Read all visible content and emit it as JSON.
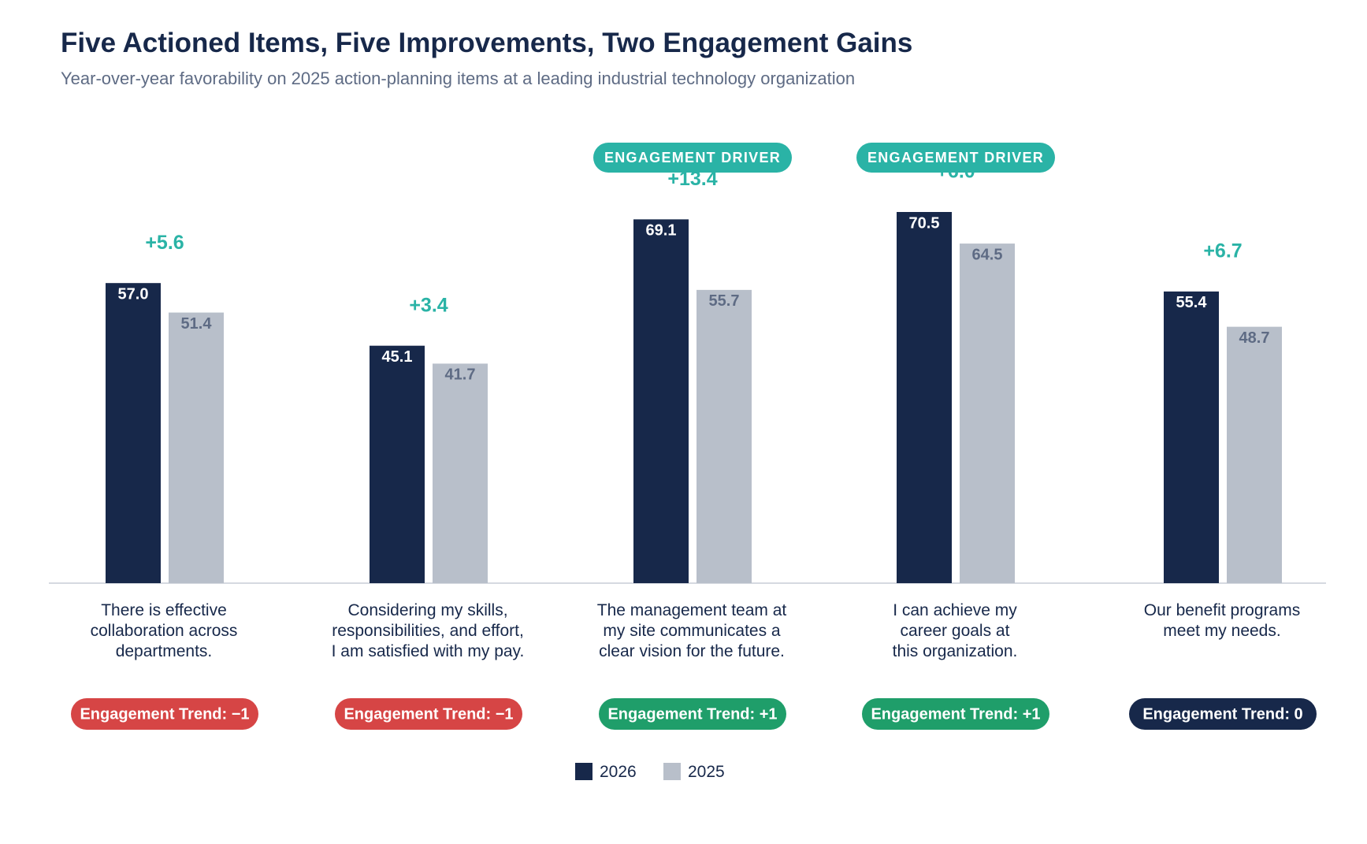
{
  "colors": {
    "primary": "#17284a",
    "secondary": "#b8bfca",
    "secondary_label": "#5e6b84",
    "accent_teal": "#2ab3a6",
    "trend_negative": "#d64545",
    "trend_positive": "#1f9e6a",
    "trend_neutral": "#17284a",
    "axis": "#d5d9e0"
  },
  "chart_data": {
    "type": "bar",
    "title": "Five Actioned Items, Five Improvements, Two Engagement Gains",
    "subtitle": "Year-over-year favorability on 2025 action-planning items at a leading industrial technology organization",
    "categories": [
      "There is effective collaboration across departments.",
      "Considering my skills, responsibilities, and effort, I am satisfied with my pay.",
      "The management team at my site communicates a clear vision for the future.",
      "I can achieve my career goals at this organization.",
      "Our benefit programs meet my needs."
    ],
    "category_lines": [
      [
        "There is effective",
        "collaboration across",
        "departments."
      ],
      [
        "Considering my skills,",
        "responsibilities, and effort,",
        "I am satisfied with my pay."
      ],
      [
        "The management team at",
        "my site communicates a",
        "clear vision for the future."
      ],
      [
        "I can achieve my",
        "career goals at",
        "this organization."
      ],
      [
        "Our benefit programs",
        "meet my needs."
      ]
    ],
    "series": [
      {
        "name": "2026",
        "values": [
          57.0,
          45.1,
          69.1,
          70.5,
          55.4
        ],
        "labels": [
          "57.0",
          "45.1",
          "69.1",
          "70.5",
          "55.4"
        ]
      },
      {
        "name": "2025",
        "values": [
          51.4,
          41.7,
          55.7,
          64.5,
          48.7
        ],
        "labels": [
          "51.4",
          "41.7",
          "55.7",
          "64.5",
          "48.7"
        ]
      }
    ],
    "differences": [
      "+5.6",
      "+3.4",
      "+13.4",
      "+6.0",
      "+6.7"
    ],
    "driver_badges": [
      "",
      "",
      "ENGAGEMENT DRIVER",
      "ENGAGEMENT DRIVER",
      ""
    ],
    "engagement_trends": [
      {
        "label": "Engagement Trend: −1",
        "status": "negative"
      },
      {
        "label": "Engagement Trend: −1",
        "status": "negative"
      },
      {
        "label": "Engagement Trend: +1",
        "status": "positive"
      },
      {
        "label": "Engagement Trend: +1",
        "status": "positive"
      },
      {
        "label": "Engagement Trend: 0",
        "status": "neutral"
      }
    ],
    "ylim": [
      0,
      70.5
    ],
    "grid": false,
    "legend_position": "bottom-center",
    "xlabel": "",
    "ylabel": ""
  }
}
